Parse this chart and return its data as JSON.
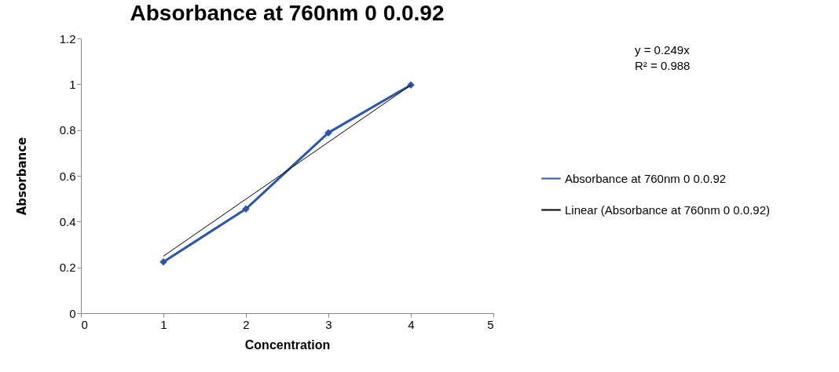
{
  "chart_data": {
    "type": "line",
    "title": "Absorbance at 760nm 0 0.0.92",
    "xlabel": "Concentration",
    "ylabel": "Absorbance",
    "x": [
      1,
      2,
      3,
      4
    ],
    "series": [
      {
        "name": "Absorbance at 760nm 0 0.0.92",
        "color": "#2e56a6",
        "values": [
          0.224,
          0.455,
          0.788,
          0.997
        ],
        "marker": "diamond"
      },
      {
        "name": "Linear (Absorbance at 760nm 0 0.0.92)",
        "color": "#000000",
        "type": "line",
        "x": [
          1,
          4
        ],
        "values": [
          0.249,
          0.996
        ],
        "marker": "none"
      }
    ],
    "xlim": [
      0,
      5
    ],
    "xticks": [
      0,
      1,
      2,
      3,
      4,
      5
    ],
    "ylim": [
      0,
      1.2
    ],
    "yticks": [
      0,
      0.2,
      0.4,
      0.6,
      0.8,
      1,
      1.2
    ],
    "grid": false,
    "legend": "right",
    "annotations": [
      "y = 0.249x",
      "R² = 0.988"
    ]
  }
}
